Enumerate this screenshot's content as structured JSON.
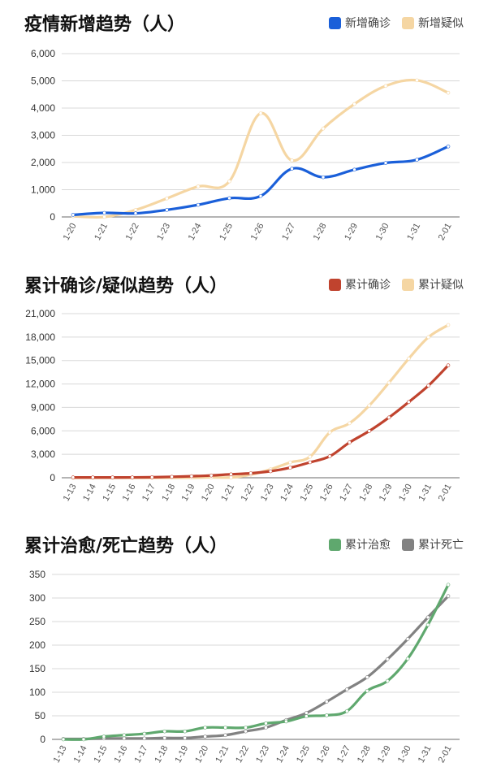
{
  "chart_data": [
    {
      "type": "line",
      "title": "疫情新增趋势（人）",
      "categories": [
        "1-20",
        "1-21",
        "1-22",
        "1-23",
        "1-24",
        "1-25",
        "1-26",
        "1-27",
        "1-28",
        "1-29",
        "1-30",
        "1-31",
        "2-01"
      ],
      "series": [
        {
          "name": "新增确诊",
          "color": "#1a5fd9",
          "values": [
            77,
            149,
            131,
            259,
            444,
            688,
            769,
            1771,
            1459,
            1737,
            1982,
            2102,
            2590
          ]
        },
        {
          "name": "新增疑似",
          "color": "#f5d6a3",
          "values": [
            27,
            0,
            257,
            680,
            1118,
            1309,
            3806,
            2077,
            3248,
            4148,
            4812,
            5019,
            4562
          ]
        }
      ],
      "yticks": [
        "0",
        "1,000",
        "2,000",
        "3,000",
        "4,000",
        "5,000",
        "6,000"
      ],
      "ylim": [
        0,
        6000
      ],
      "grid": true,
      "legend": "top-right"
    },
    {
      "type": "line",
      "title": "累计确诊/疑似趋势（人）",
      "categories": [
        "1-13",
        "1-14",
        "1-15",
        "1-16",
        "1-17",
        "1-18",
        "1-19",
        "1-20",
        "1-21",
        "1-22",
        "1-23",
        "1-24",
        "1-25",
        "1-26",
        "1-27",
        "1-28",
        "1-29",
        "1-30",
        "1-31",
        "2-01"
      ],
      "series": [
        {
          "name": "累计确诊",
          "color": "#c0432e",
          "values": [
            41,
            41,
            41,
            45,
            62,
            121,
            198,
            291,
            440,
            571,
            830,
            1287,
            1975,
            2744,
            4515,
            5974,
            7711,
            9692,
            11791,
            14380
          ]
        },
        {
          "name": "累计疑似",
          "color": "#f5d6a3",
          "values": [
            0,
            0,
            0,
            0,
            0,
            0,
            0,
            54,
            37,
            393,
            1072,
            1965,
            2684,
            5794,
            6973,
            9239,
            12167,
            15238,
            17988,
            19544
          ]
        }
      ],
      "yticks": [
        "0",
        "3,000",
        "6,000",
        "9,000",
        "12,000",
        "15,000",
        "18,000",
        "21,000"
      ],
      "ylim": [
        0,
        21000
      ],
      "grid": true,
      "legend": "top-right"
    },
    {
      "type": "line",
      "title": "累计治愈/死亡趋势（人）",
      "categories": [
        "1-13",
        "1-14",
        "1-15",
        "1-16",
        "1-17",
        "1-18",
        "1-19",
        "1-20",
        "1-21",
        "1-22",
        "1-23",
        "1-24",
        "1-25",
        "1-26",
        "1-27",
        "1-28",
        "1-29",
        "1-30",
        "1-31",
        "2-01"
      ],
      "series": [
        {
          "name": "累计治愈",
          "color": "#5fa86e",
          "values": [
            0,
            0,
            6,
            9,
            12,
            17,
            17,
            25,
            25,
            25,
            34,
            38,
            49,
            51,
            60,
            103,
            124,
            171,
            243,
            328
          ]
        },
        {
          "name": "累计死亡",
          "color": "#828282",
          "values": [
            1,
            1,
            2,
            2,
            2,
            3,
            3,
            6,
            9,
            17,
            25,
            41,
            56,
            80,
            106,
            132,
            170,
            213,
            259,
            304
          ]
        }
      ],
      "yticks": [
        "0",
        "50",
        "100",
        "150",
        "200",
        "250",
        "300",
        "350"
      ],
      "ylim": [
        0,
        350
      ],
      "grid": true,
      "legend": "top-right"
    }
  ]
}
